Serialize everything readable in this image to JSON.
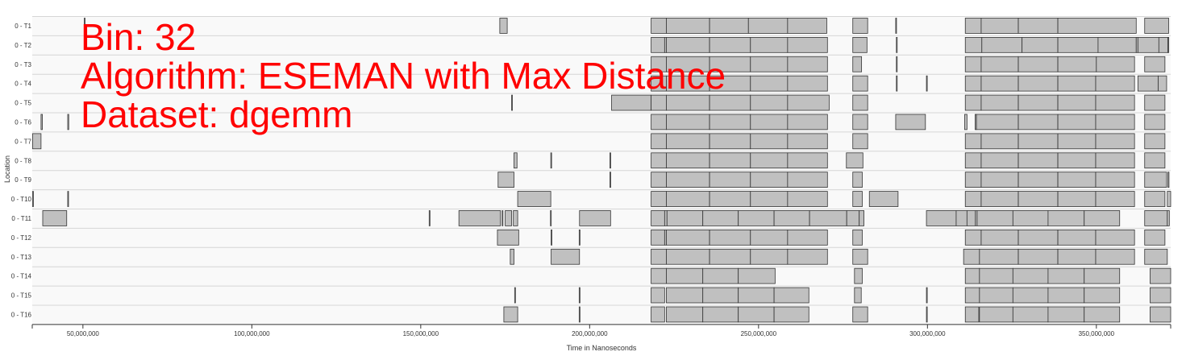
{
  "overlay": {
    "bin": "Bin: 32",
    "algorithm": "Algorithm: ESEMAN with Max Distance",
    "dataset": "Dataset: dgemm"
  },
  "colors": {
    "bar_fill": "#c0c0c0",
    "bar_stroke": "#333333",
    "row_bg": "#f9f9f9",
    "row_line": "#d6d6d6",
    "overlay_text": "#ff0000"
  },
  "chart_data": {
    "type": "timeline",
    "xlabel": "Time in Nanoseconds",
    "ylabel": "Location",
    "xlim": [
      35000000,
      372000000
    ],
    "xticks": [
      50000000,
      100000000,
      150000000,
      200000000,
      250000000,
      300000000,
      350000000
    ],
    "xtick_labels": [
      "50,000,000",
      "100,000,000",
      "150,000,000",
      "200,000,000",
      "250,000,000",
      "300,000,000",
      "350,000,000"
    ],
    "rows": [
      {
        "label": "0 - T1",
        "intervals": [
          [
            50400000,
            50600000
          ],
          [
            173400000,
            175600000
          ],
          [
            218200000,
            222700000
          ],
          [
            222700000,
            235500000
          ],
          [
            235500000,
            247000000
          ],
          [
            247000000,
            258600000
          ],
          [
            258600000,
            270200000
          ],
          [
            277900000,
            282300000
          ],
          [
            290600000,
            290800000
          ],
          [
            311200000,
            315900000
          ],
          [
            315900000,
            326900000
          ],
          [
            326900000,
            338600000
          ],
          [
            338600000,
            361800000
          ],
          [
            364300000,
            371400000
          ]
        ]
      },
      {
        "label": "0 - T2",
        "intervals": [
          [
            218200000,
            222200000
          ],
          [
            222200000,
            222700000
          ],
          [
            222700000,
            235500000
          ],
          [
            235500000,
            247600000
          ],
          [
            247600000,
            258600000
          ],
          [
            258600000,
            270400000
          ],
          [
            277900000,
            282100000
          ],
          [
            290800000,
            291000000
          ],
          [
            311200000,
            316100000
          ],
          [
            316100000,
            328000000
          ],
          [
            328000000,
            338600000
          ],
          [
            338600000,
            350500000
          ],
          [
            350500000,
            361800000
          ],
          [
            361800000,
            362300000
          ],
          [
            362300000,
            368500000
          ],
          [
            368500000,
            371200000
          ],
          [
            371200000,
            371400000
          ]
        ]
      },
      {
        "label": "0 - T3",
        "intervals": [
          [
            218200000,
            222700000
          ],
          [
            222700000,
            235500000
          ],
          [
            235500000,
            247600000
          ],
          [
            247600000,
            258600000
          ],
          [
            258600000,
            270400000
          ],
          [
            277900000,
            280500000
          ],
          [
            290800000,
            291000000
          ],
          [
            311200000,
            315900000
          ],
          [
            315900000,
            326900000
          ],
          [
            326900000,
            338600000
          ],
          [
            338600000,
            350000000
          ],
          [
            350000000,
            361300000
          ],
          [
            364300000,
            370300000
          ]
        ]
      },
      {
        "label": "0 - T4",
        "intervals": [
          [
            218200000,
            222700000
          ],
          [
            222700000,
            235500000
          ],
          [
            235500000,
            247600000
          ],
          [
            247600000,
            258600000
          ],
          [
            258600000,
            270400000
          ],
          [
            277900000,
            282300000
          ],
          [
            290800000,
            291000000
          ],
          [
            299700000,
            299900000
          ],
          [
            311200000,
            315900000
          ],
          [
            315900000,
            326900000
          ],
          [
            326900000,
            338600000
          ],
          [
            338600000,
            349800000
          ],
          [
            349800000,
            361300000
          ],
          [
            362300000,
            368300000
          ],
          [
            368300000,
            370800000
          ]
        ]
      },
      {
        "label": "0 - T5",
        "intervals": [
          [
            176900000,
            177100000
          ],
          [
            206500000,
            218200000
          ],
          [
            218200000,
            222700000
          ],
          [
            222700000,
            235500000
          ],
          [
            235500000,
            247600000
          ],
          [
            247600000,
            258600000
          ],
          [
            258600000,
            270900000
          ],
          [
            277900000,
            282300000
          ],
          [
            311200000,
            315900000
          ],
          [
            315900000,
            326900000
          ],
          [
            326900000,
            338600000
          ],
          [
            338600000,
            349800000
          ],
          [
            349800000,
            361300000
          ],
          [
            364300000,
            370300000
          ]
        ]
      },
      {
        "label": "0 - T6",
        "intervals": [
          [
            37600000,
            38000000
          ],
          [
            45500000,
            45800000
          ],
          [
            218200000,
            222700000
          ],
          [
            222700000,
            235500000
          ],
          [
            235500000,
            247600000
          ],
          [
            247600000,
            258600000
          ],
          [
            258600000,
            270400000
          ],
          [
            277900000,
            282300000
          ],
          [
            290600000,
            299400000
          ],
          [
            311000000,
            311700000
          ],
          [
            314100000,
            314500000
          ],
          [
            314500000,
            326900000
          ],
          [
            326900000,
            338600000
          ],
          [
            338600000,
            349800000
          ],
          [
            349800000,
            361300000
          ],
          [
            364300000,
            370300000
          ]
        ]
      },
      {
        "label": "0 - T7",
        "intervals": [
          [
            35100000,
            37600000
          ],
          [
            218200000,
            222700000
          ],
          [
            222700000,
            235500000
          ],
          [
            235500000,
            247600000
          ],
          [
            247600000,
            258600000
          ],
          [
            258600000,
            270400000
          ],
          [
            277900000,
            282300000
          ],
          [
            311200000,
            315900000
          ],
          [
            315900000,
            326900000
          ],
          [
            326900000,
            338600000
          ],
          [
            338600000,
            349800000
          ],
          [
            349800000,
            361300000
          ],
          [
            364300000,
            370300000
          ]
        ]
      },
      {
        "label": "0 - T8",
        "intervals": [
          [
            177600000,
            178500000
          ],
          [
            188500000,
            188700000
          ],
          [
            206000000,
            206200000
          ],
          [
            218200000,
            222700000
          ],
          [
            222700000,
            235500000
          ],
          [
            235500000,
            247600000
          ],
          [
            247600000,
            258600000
          ],
          [
            258600000,
            270400000
          ],
          [
            276000000,
            280900000
          ],
          [
            311200000,
            315900000
          ],
          [
            315900000,
            326900000
          ],
          [
            326900000,
            338600000
          ],
          [
            338600000,
            349800000
          ],
          [
            349800000,
            361300000
          ],
          [
            364300000,
            370300000
          ]
        ]
      },
      {
        "label": "0 - T9",
        "intervals": [
          [
            172900000,
            177600000
          ],
          [
            206000000,
            206200000
          ],
          [
            218200000,
            222700000
          ],
          [
            222700000,
            235500000
          ],
          [
            235500000,
            247600000
          ],
          [
            247600000,
            258600000
          ],
          [
            258600000,
            270400000
          ],
          [
            277900000,
            280700000
          ],
          [
            311200000,
            315900000
          ],
          [
            315900000,
            326900000
          ],
          [
            326900000,
            338600000
          ],
          [
            338600000,
            349800000
          ],
          [
            349800000,
            361300000
          ],
          [
            364300000,
            370800000
          ],
          [
            371200000,
            371500000
          ]
        ]
      },
      {
        "label": "0 - T10",
        "intervals": [
          [
            35100000,
            35300000
          ],
          [
            45500000,
            45700000
          ],
          [
            178700000,
            188500000
          ],
          [
            218200000,
            222700000
          ],
          [
            222700000,
            235500000
          ],
          [
            235500000,
            247600000
          ],
          [
            247600000,
            258600000
          ],
          [
            258600000,
            270400000
          ],
          [
            277900000,
            280700000
          ],
          [
            282800000,
            291300000
          ],
          [
            311200000,
            315900000
          ],
          [
            315900000,
            326900000
          ],
          [
            326900000,
            338600000
          ],
          [
            338600000,
            349800000
          ],
          [
            349800000,
            361300000
          ],
          [
            364300000,
            370300000
          ],
          [
            371000000,
            372000000
          ]
        ]
      },
      {
        "label": "0 - T11",
        "intervals": [
          [
            38100000,
            45200000
          ],
          [
            152500000,
            152700000
          ],
          [
            161300000,
            173600000
          ],
          [
            174100000,
            174300000
          ],
          [
            175000000,
            176900000
          ],
          [
            177400000,
            178700000
          ],
          [
            188400000,
            188600000
          ],
          [
            197000000,
            206200000
          ],
          [
            218200000,
            222200000
          ],
          [
            222200000,
            222900000
          ],
          [
            222900000,
            233500000
          ],
          [
            233500000,
            244000000
          ],
          [
            244000000,
            254600000
          ],
          [
            254600000,
            265100000
          ],
          [
            265100000,
            276100000
          ],
          [
            276100000,
            279800000
          ],
          [
            279800000,
            281200000
          ],
          [
            299700000,
            308500000
          ],
          [
            308500000,
            311700000
          ],
          [
            311700000,
            314200000
          ],
          [
            314200000,
            314700000
          ],
          [
            314700000,
            325300000
          ],
          [
            325300000,
            335700000
          ],
          [
            335700000,
            346400000
          ],
          [
            346400000,
            356900000
          ],
          [
            364300000,
            371000000
          ],
          [
            371000000,
            371600000
          ]
        ]
      },
      {
        "label": "0 - T12",
        "intervals": [
          [
            172700000,
            179000000
          ],
          [
            188600000,
            188800000
          ],
          [
            196900000,
            197100000
          ],
          [
            218200000,
            222200000
          ],
          [
            222200000,
            222700000
          ],
          [
            222700000,
            235500000
          ],
          [
            235500000,
            247600000
          ],
          [
            247600000,
            258600000
          ],
          [
            258600000,
            270400000
          ],
          [
            277900000,
            280700000
          ],
          [
            311200000,
            315900000
          ],
          [
            315900000,
            326900000
          ],
          [
            326900000,
            338600000
          ],
          [
            338600000,
            349800000
          ],
          [
            349800000,
            361300000
          ],
          [
            364300000,
            370300000
          ]
        ]
      },
      {
        "label": "0 - T13",
        "intervals": [
          [
            176500000,
            177600000
          ],
          [
            188600000,
            197000000
          ],
          [
            218200000,
            222700000
          ],
          [
            222700000,
            235500000
          ],
          [
            235500000,
            247600000
          ],
          [
            247600000,
            258600000
          ],
          [
            258600000,
            270400000
          ],
          [
            277900000,
            282300000
          ],
          [
            310700000,
            315400000
          ],
          [
            315400000,
            326900000
          ],
          [
            326900000,
            338600000
          ],
          [
            338600000,
            349800000
          ],
          [
            349800000,
            361300000
          ],
          [
            364300000,
            371000000
          ]
        ]
      },
      {
        "label": "0 - T14",
        "intervals": [
          [
            218200000,
            222700000
          ],
          [
            222700000,
            233500000
          ],
          [
            233500000,
            244000000
          ],
          [
            244000000,
            254900000
          ],
          [
            278400000,
            280700000
          ],
          [
            311200000,
            315400000
          ],
          [
            315400000,
            325300000
          ],
          [
            325300000,
            335700000
          ],
          [
            335700000,
            346400000
          ],
          [
            346400000,
            356900000
          ],
          [
            365900000,
            372000000
          ]
        ]
      },
      {
        "label": "0 - T15",
        "intervals": [
          [
            177800000,
            178000000
          ],
          [
            196900000,
            197100000
          ],
          [
            218200000,
            222200000
          ],
          [
            222700000,
            233500000
          ],
          [
            233500000,
            244000000
          ],
          [
            244000000,
            254600000
          ],
          [
            254600000,
            264900000
          ],
          [
            278400000,
            280400000
          ],
          [
            299700000,
            299900000
          ],
          [
            311200000,
            315400000
          ],
          [
            315400000,
            325300000
          ],
          [
            325300000,
            335700000
          ],
          [
            335700000,
            346400000
          ],
          [
            346400000,
            356900000
          ],
          [
            365900000,
            372000000
          ]
        ]
      },
      {
        "label": "0 - T16",
        "intervals": [
          [
            174600000,
            178700000
          ],
          [
            196900000,
            197100000
          ],
          [
            218200000,
            222200000
          ],
          [
            222700000,
            233500000
          ],
          [
            233500000,
            244000000
          ],
          [
            244000000,
            254600000
          ],
          [
            254600000,
            264900000
          ],
          [
            277900000,
            282300000
          ],
          [
            299700000,
            299900000
          ],
          [
            311200000,
            315200000
          ],
          [
            315400000,
            325300000
          ],
          [
            325300000,
            335700000
          ],
          [
            335700000,
            346400000
          ],
          [
            346400000,
            356900000
          ],
          [
            365900000,
            372000000
          ]
        ]
      }
    ]
  }
}
